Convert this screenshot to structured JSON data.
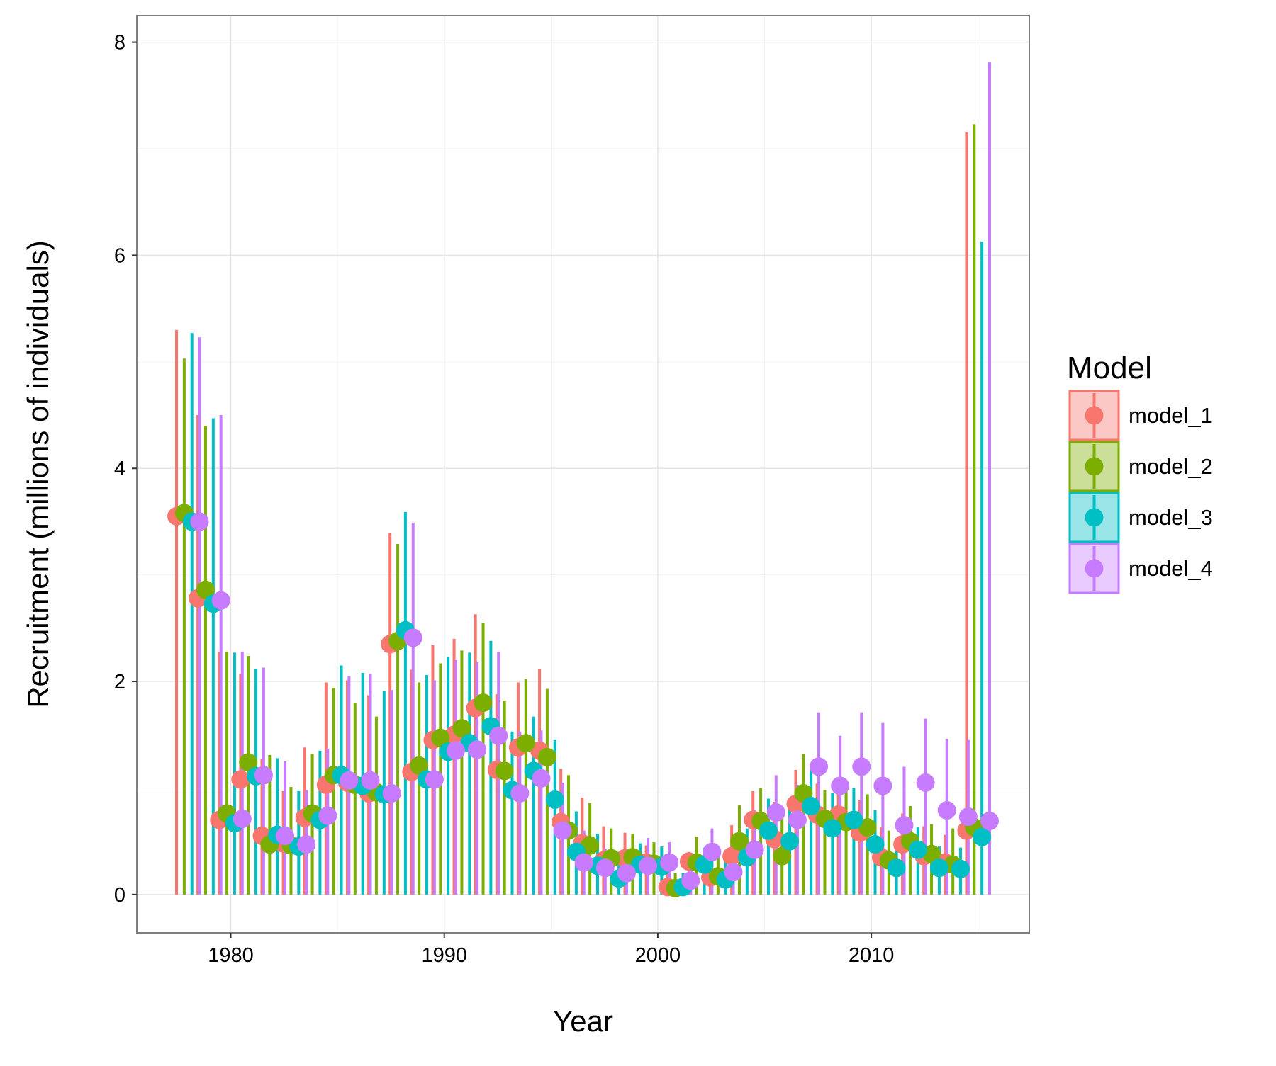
{
  "chart_data": {
    "type": "scatter",
    "title": "",
    "xlabel": "Year",
    "ylabel": "Recruitment (millions of individuals)",
    "xlim": [
      1975.6,
      2017.4
    ],
    "ylim": [
      -0.36,
      8.25
    ],
    "x_ticks": [
      {
        "value": 1980,
        "label": "1980"
      },
      {
        "value": 1990,
        "label": "1990"
      },
      {
        "value": 2000,
        "label": "2000"
      },
      {
        "value": 2010,
        "label": "2010"
      }
    ],
    "y_ticks": [
      {
        "value": 0,
        "label": "0"
      },
      {
        "value": 2,
        "label": "2"
      },
      {
        "value": 4,
        "label": "4"
      },
      {
        "value": 6,
        "label": "6"
      },
      {
        "value": 8,
        "label": "8"
      }
    ],
    "grid": true,
    "legend": {
      "title": "Model",
      "position": "right"
    },
    "x": [
      1978,
      1979,
      1980,
      1981,
      1982,
      1983,
      1984,
      1985,
      1986,
      1987,
      1988,
      1989,
      1990,
      1991,
      1992,
      1993,
      1994,
      1995,
      1996,
      1997,
      1998,
      1999,
      2000,
      2001,
      2002,
      2003,
      2004,
      2005,
      2006,
      2007,
      2008,
      2009,
      2010,
      2011,
      2012,
      2013,
      2014,
      2015
    ],
    "series": [
      {
        "name": "model_1",
        "color": "#F8766D",
        "values": [
          3.55,
          2.78,
          0.7,
          1.08,
          0.55,
          0.48,
          0.72,
          1.03,
          1.05,
          0.95,
          2.35,
          1.15,
          1.45,
          1.5,
          1.75,
          1.17,
          1.38,
          1.35,
          0.68,
          0.48,
          0.32,
          0.34,
          0.3,
          0.07,
          0.31,
          0.16,
          0.36,
          0.7,
          0.52,
          0.85,
          0.75,
          0.75,
          0.58,
          0.35,
          0.47,
          0.36,
          0.3,
          0.6
        ],
        "upper": [
          5.3,
          4.5,
          2.28,
          2.07,
          1.27,
          0.97,
          1.38,
          1.99,
          2.01,
          1.87,
          3.39,
          2.11,
          2.34,
          2.4,
          2.63,
          1.88,
          1.99,
          2.12,
          1.18,
          0.91,
          0.64,
          0.58,
          0.46,
          0.21,
          0.4,
          0.3,
          0.65,
          0.97,
          0.87,
          1.17,
          1.04,
          1.03,
          0.89,
          0.63,
          0.76,
          0.64,
          0.56,
          7.16
        ],
        "lower": [
          0,
          0,
          0,
          0,
          0,
          0,
          0,
          0,
          0,
          0,
          0,
          0,
          0,
          0,
          0,
          0,
          0,
          0,
          0,
          0,
          0,
          0,
          0,
          0,
          0,
          0,
          0,
          0,
          0,
          0,
          0,
          0,
          0,
          0,
          0,
          0,
          0,
          0
        ]
      },
      {
        "name": "model_2",
        "color": "#7CAE00",
        "values": [
          3.58,
          2.86,
          0.76,
          1.24,
          0.47,
          0.46,
          0.76,
          1.12,
          1.03,
          0.96,
          2.38,
          1.21,
          1.47,
          1.56,
          1.8,
          1.16,
          1.42,
          1.29,
          0.6,
          0.46,
          0.34,
          0.35,
          0.29,
          0.06,
          0.3,
          0.17,
          0.5,
          0.69,
          0.36,
          0.95,
          0.71,
          0.68,
          0.63,
          0.32,
          0.5,
          0.38,
          0.28,
          0.63
        ],
        "upper": [
          5.03,
          4.4,
          2.28,
          2.24,
          1.31,
          1.01,
          1.32,
          1.94,
          1.8,
          1.67,
          3.29,
          1.99,
          2.17,
          2.29,
          2.55,
          1.82,
          2.02,
          1.93,
          1.12,
          0.86,
          0.62,
          0.57,
          0.49,
          0.2,
          0.54,
          0.35,
          0.84,
          1.0,
          0.79,
          1.32,
          0.98,
          0.98,
          0.94,
          0.6,
          0.83,
          0.66,
          0.62,
          7.23
        ],
        "lower": [
          0,
          0,
          0,
          0,
          0,
          0,
          0,
          0,
          0,
          0,
          0,
          0,
          0,
          0,
          0,
          0,
          0,
          0,
          0,
          0,
          0,
          0,
          0,
          0,
          0,
          0,
          0,
          0,
          0,
          0,
          0,
          0,
          0,
          0,
          0,
          0,
          0,
          0
        ]
      },
      {
        "name": "model_3",
        "color": "#00BFC4",
        "values": [
          3.5,
          2.73,
          0.67,
          1.11,
          0.56,
          0.45,
          0.7,
          1.12,
          1.02,
          0.94,
          2.48,
          1.08,
          1.34,
          1.42,
          1.58,
          0.98,
          1.16,
          0.89,
          0.4,
          0.27,
          0.15,
          0.28,
          0.26,
          0.07,
          0.28,
          0.14,
          0.35,
          0.6,
          0.5,
          0.83,
          0.62,
          0.7,
          0.47,
          0.25,
          0.42,
          0.25,
          0.24,
          0.54
        ],
        "upper": [
          5.27,
          4.47,
          2.27,
          2.12,
          1.28,
          0.97,
          1.35,
          2.15,
          2.08,
          1.91,
          3.59,
          2.06,
          2.23,
          2.27,
          2.38,
          1.53,
          1.67,
          1.45,
          0.78,
          0.57,
          0.4,
          0.48,
          0.45,
          0.2,
          0.44,
          0.31,
          0.62,
          0.9,
          0.86,
          1.18,
          0.95,
          1.0,
          0.79,
          0.53,
          0.63,
          0.45,
          0.44,
          6.13
        ],
        "lower": [
          0,
          0,
          0,
          0,
          0,
          0,
          0,
          0,
          0,
          0,
          0,
          0,
          0,
          0,
          0,
          0,
          0,
          0,
          0,
          0,
          0,
          0,
          0,
          0,
          0,
          0,
          0,
          0,
          0,
          0,
          0,
          0,
          0,
          0,
          0,
          0,
          0,
          0
        ]
      },
      {
        "name": "model_4",
        "color": "#C77CFF",
        "values": [
          3.5,
          2.76,
          0.71,
          1.12,
          0.55,
          0.47,
          0.74,
          1.07,
          1.07,
          0.95,
          2.41,
          1.08,
          1.35,
          1.36,
          1.49,
          0.95,
          1.09,
          0.6,
          0.3,
          0.25,
          0.2,
          0.27,
          0.3,
          0.13,
          0.4,
          0.21,
          0.42,
          0.77,
          0.7,
          1.2,
          1.02,
          1.2,
          1.02,
          0.65,
          1.05,
          0.79,
          0.73,
          0.69
        ],
        "upper": [
          5.23,
          4.5,
          2.28,
          2.13,
          1.25,
          0.98,
          1.37,
          2.05,
          2.07,
          1.92,
          3.49,
          2.01,
          2.2,
          2.18,
          2.28,
          1.53,
          1.54,
          1.05,
          0.6,
          0.43,
          0.42,
          0.53,
          0.49,
          0.3,
          0.62,
          0.44,
          0.79,
          1.12,
          1.03,
          1.71,
          1.49,
          1.71,
          1.61,
          1.2,
          1.65,
          1.46,
          1.45,
          7.81
        ],
        "lower": [
          0,
          0,
          0,
          0,
          0,
          0,
          0,
          0,
          0,
          0,
          0,
          0,
          0,
          0,
          0,
          0,
          0,
          0,
          0,
          0,
          0,
          0,
          0,
          0,
          0,
          0,
          0,
          0,
          0,
          0,
          0,
          0,
          0,
          0,
          0,
          0,
          0,
          0
        ]
      }
    ]
  }
}
